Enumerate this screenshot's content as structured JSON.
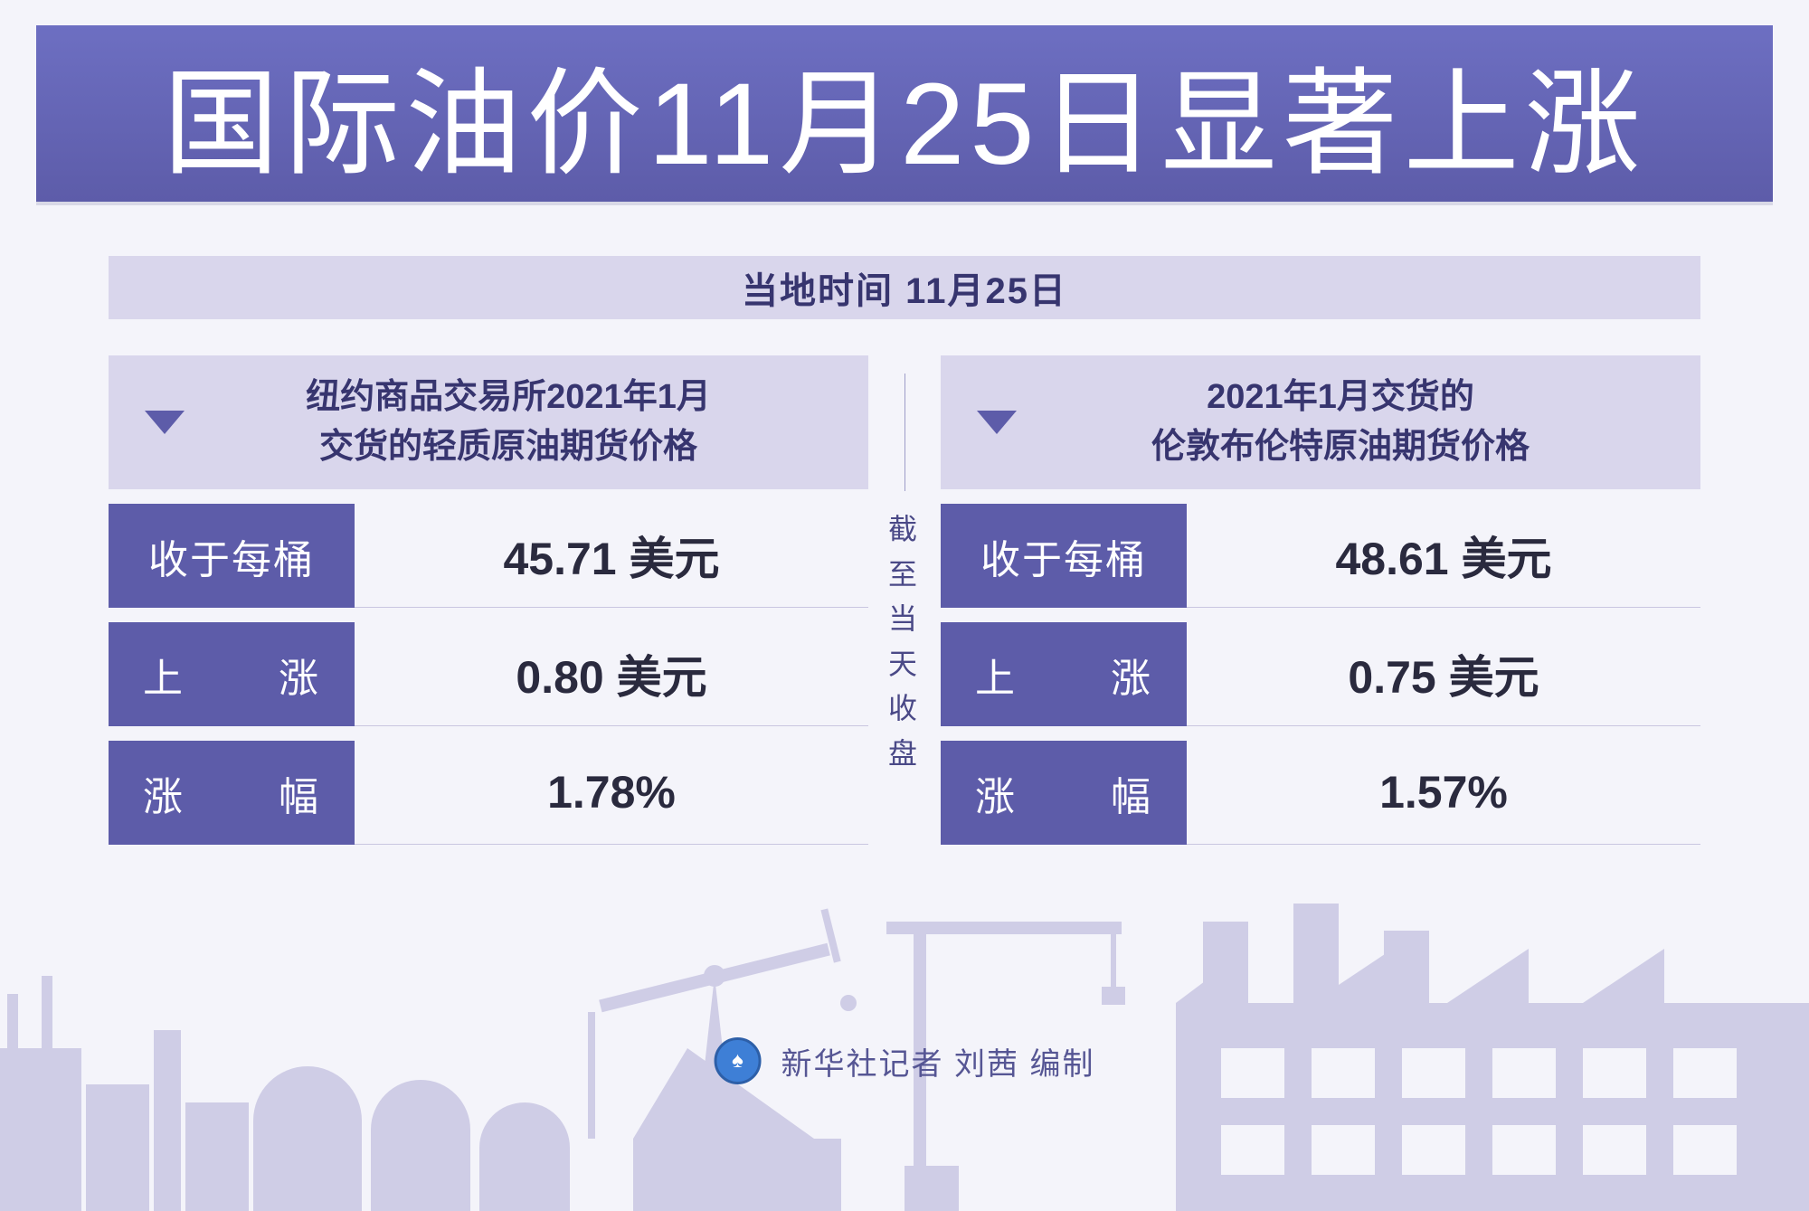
{
  "colors": {
    "page_bg": "#f4f4fa",
    "banner_gradient_top": "#6d6fc2",
    "banner_gradient_bottom": "#5d5ca9",
    "banner_text": "#ffffff",
    "subtitle_bg": "#d9d6ec",
    "subtitle_text": "#37356f",
    "panel_head_bg": "#d9d6ec",
    "panel_head_text": "#37356f",
    "row_label_bg": "#5d5ca9",
    "row_label_text": "#ffffff",
    "row_value_text": "#2a2a3e",
    "row_border": "#c9c6e0",
    "divider_line": "#9d9cc8",
    "divider_text": "#4a4987",
    "silhouette_fill": "#cfcde6",
    "logo_bg": "#3e7fd6",
    "credit_text": "#565694"
  },
  "typography": {
    "title_fontsize": 128,
    "subtitle_fontsize": 40,
    "panel_head_fontsize": 38,
    "row_label_fontsize": 44,
    "row_value_fontsize": 50,
    "divider_fontsize": 32,
    "credit_fontsize": 34
  },
  "title": "国际油价11月25日显著上涨",
  "subtitle": "当地时间 11月25日",
  "center_divider": "截至当天收盘",
  "panels": [
    {
      "heading": "纽约商品交易所2021年1月\n交货的轻质原油期货价格",
      "rows": [
        {
          "label": "收于每桶",
          "justified": false,
          "value": "45.71 美元"
        },
        {
          "label_start": "上",
          "label_end": "涨",
          "justified": true,
          "value": "0.80 美元"
        },
        {
          "label_start": "涨",
          "label_end": "幅",
          "justified": true,
          "value": "1.78%"
        }
      ]
    },
    {
      "heading": "2021年1月交货的\n伦敦布伦特原油期货价格",
      "rows": [
        {
          "label": "收于每桶",
          "justified": false,
          "value": "48.61 美元"
        },
        {
          "label_start": "上",
          "label_end": "涨",
          "justified": true,
          "value": "0.75 美元"
        },
        {
          "label_start": "涨",
          "label_end": "幅",
          "justified": true,
          "value": "1.57%"
        }
      ]
    }
  ],
  "credit": "新华社记者  刘茜  编制",
  "logo_glyph": "♠"
}
